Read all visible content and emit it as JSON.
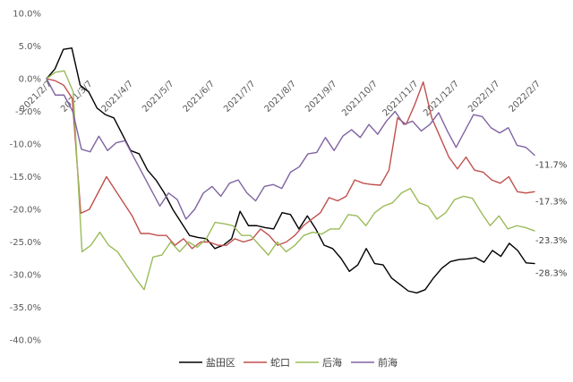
{
  "chart_data": {
    "type": "line",
    "title": "",
    "xlabel": "",
    "ylabel": "",
    "ylim": [
      -40,
      10
    ],
    "yticks": [
      10,
      5,
      0,
      -5,
      -10,
      -15,
      -20,
      -25,
      -30,
      -35,
      -40
    ],
    "ytick_labels": [
      "10.0%",
      "5.0%",
      "0.0%",
      "-5.0%",
      "-10.0%",
      "-15.0%",
      "-20.0%",
      "-25.0%",
      "-30.0%",
      "-35.0%",
      "-40.0%"
    ],
    "grid": false,
    "legend": "bottom",
    "x_start": "2021/2/7",
    "x_end": "2022/3/7",
    "xtick_labels": [
      "2021/2/7",
      "2021/3/7",
      "2021/4/7",
      "2021/5/7",
      "2021/6/7",
      "2021/7/7",
      "2021/8/7",
      "2021/9/7",
      "2021/10/7",
      "2021/11/7",
      "2021/12/7",
      "2022/1/7",
      "2022/2/7"
    ],
    "series": [
      {
        "name": "盐田区",
        "color": "#000000",
        "end_label": "-28.3%",
        "values": [
          0,
          1.5,
          4.5,
          4.7,
          -1,
          -2,
          -4.5,
          -5.5,
          -6,
          -8.5,
          -11,
          -11.5,
          -14,
          -15.5,
          -17.5,
          -20,
          -22,
          -24,
          -24.3,
          -24.5,
          -26,
          -25.5,
          -24.5,
          -20.3,
          -22.5,
          -22.5,
          -22.8,
          -23,
          -20.5,
          -20.8,
          -23,
          -21,
          -23,
          -25.5,
          -26,
          -27.5,
          -29.5,
          -28.5,
          -26,
          -28.3,
          -28.5,
          -30.5,
          -31.5,
          -32.5,
          -32.8,
          -32.3,
          -30.5,
          -29,
          -28,
          -27.7,
          -27.6,
          -27.4,
          -28.1,
          -26.3,
          -27.2,
          -25.2,
          -26.3,
          -28.2,
          -28.3
        ]
      },
      {
        "name": "蛇口",
        "color": "#c0504d",
        "end_label": "-17.3%",
        "values": [
          0,
          -0.3,
          -1,
          -3,
          -20.6,
          -20,
          -17.5,
          -15,
          -17,
          -19,
          -21,
          -23.7,
          -23.7,
          -24,
          -24,
          -25.5,
          -24.5,
          -26,
          -25,
          -25,
          -25.5,
          -25.5,
          -24.5,
          -25,
          -24.6,
          -23,
          -24,
          -25.5,
          -25,
          -24,
          -22.5,
          -21.5,
          -20.5,
          -18.2,
          -18.7,
          -18,
          -15.5,
          -16,
          -16.2,
          -16.3,
          -14,
          -6,
          -7,
          -4,
          -0.5,
          -6,
          -9,
          -12,
          -13.8,
          -12,
          -14,
          -14.3,
          -15.5,
          -16,
          -15,
          -17.3,
          -17.5,
          -17.3
        ]
      },
      {
        "name": "后海",
        "color": "#9bbb59",
        "end_label": "-23.3%",
        "values": [
          0,
          1,
          1.2,
          -2,
          -26.5,
          -25.5,
          -23.5,
          -25.5,
          -26.5,
          -28.5,
          -30.5,
          -32.3,
          -27.3,
          -27,
          -25,
          -26.5,
          -25,
          -25.8,
          -24.5,
          -22,
          -22.2,
          -22.5,
          -24,
          -24,
          -25.5,
          -27,
          -25,
          -26.5,
          -25.5,
          -24,
          -23.5,
          -23.8,
          -23,
          -23,
          -20.8,
          -21,
          -22.5,
          -20.5,
          -19.5,
          -19,
          -17.5,
          -16.8,
          -19,
          -19.5,
          -21.5,
          -20.5,
          -18.5,
          -18,
          -18.3,
          -20.5,
          -22.5,
          -21,
          -23,
          -22.5,
          -22.8,
          -23.3
        ]
      },
      {
        "name": "前海",
        "color": "#8064a2",
        "end_label": "-11.7%",
        "values": [
          0,
          -2.5,
          -2.5,
          -5,
          -10.8,
          -11.2,
          -8.8,
          -11,
          -9.8,
          -9.5,
          -12,
          -14.5,
          -17,
          -19.5,
          -17.5,
          -18.5,
          -21.5,
          -20,
          -17.5,
          -16.5,
          -18,
          -16,
          -15.5,
          -17.5,
          -18.7,
          -16.5,
          -16.2,
          -16.8,
          -14.3,
          -13.5,
          -11.5,
          -11.3,
          -9,
          -11,
          -8.8,
          -7.8,
          -9,
          -7,
          -8.5,
          -6.5,
          -5,
          -7,
          -6.5,
          -8,
          -7,
          -5.2,
          -8,
          -10.5,
          -8,
          -5.5,
          -5.8,
          -7.5,
          -8.3,
          -7.5,
          -10.2,
          -10.5,
          -11.7
        ]
      }
    ]
  }
}
